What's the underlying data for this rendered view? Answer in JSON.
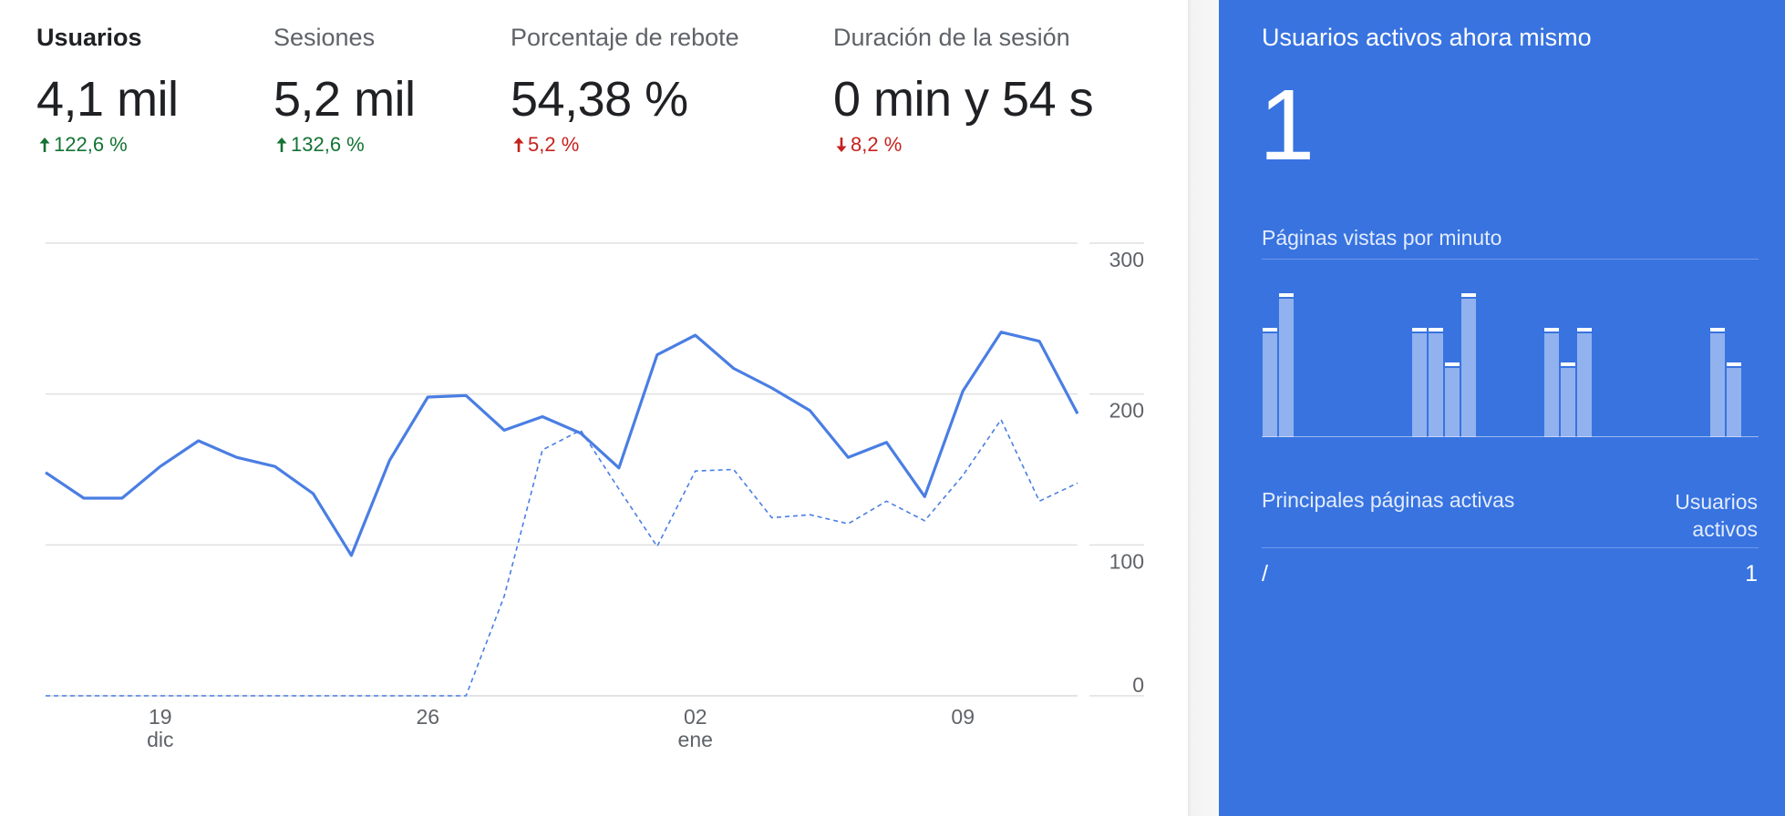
{
  "metrics": [
    {
      "label": "Usuarios",
      "value": "4,1 mil",
      "change": "122,6 %",
      "direction": "up",
      "tone": "good",
      "active": true
    },
    {
      "label": "Sesiones",
      "value": "5,2 mil",
      "change": "132,6 %",
      "direction": "up",
      "tone": "good",
      "active": false
    },
    {
      "label": "Porcentaje de rebote",
      "value": "54,38 %",
      "change": "5,2 %",
      "direction": "up",
      "tone": "bad",
      "active": false
    },
    {
      "label": "Duración de la sesión",
      "value": "0 min y 54 s",
      "change": "8,2 %",
      "direction": "down",
      "tone": "bad",
      "active": false
    }
  ],
  "colors": {
    "good": "#137333",
    "bad": "#c5221f",
    "series_line": "#4a7ee3",
    "panel": "#3873e0"
  },
  "chart_data": {
    "type": "line",
    "x": [
      "2020-12-16",
      "2020-12-17",
      "2020-12-18",
      "2020-12-19",
      "2020-12-20",
      "2020-12-21",
      "2020-12-22",
      "2020-12-23",
      "2020-12-24",
      "2020-12-25",
      "2020-12-26",
      "2020-12-27",
      "2020-12-28",
      "2020-12-29",
      "2020-12-30",
      "2020-12-31",
      "2021-01-01",
      "2021-01-02",
      "2021-01-03",
      "2021-01-04",
      "2021-01-05",
      "2021-01-06",
      "2021-01-07",
      "2021-01-08",
      "2021-01-09",
      "2021-01-10",
      "2021-01-11",
      "2021-01-12"
    ],
    "series": [
      {
        "values": [
          148,
          131,
          131,
          152,
          169,
          158,
          152,
          134,
          93,
          156,
          198,
          199,
          176,
          185,
          174,
          151,
          226,
          239,
          217,
          204,
          189,
          158,
          168,
          132,
          202,
          241,
          235,
          187
        ],
        "style": "solid"
      },
      {
        "values": [
          0,
          0,
          0,
          0,
          0,
          0,
          0,
          0,
          0,
          0,
          0,
          0,
          66,
          163,
          176,
          137,
          99,
          149,
          150,
          118,
          120,
          114,
          129,
          116,
          146,
          183,
          129,
          141
        ],
        "style": "dashed"
      }
    ],
    "x_tick_labels": [
      {
        "day": "19",
        "month": "dic",
        "x": "2020-12-19"
      },
      {
        "day": "26",
        "month": "",
        "x": "2020-12-26"
      },
      {
        "day": "02",
        "month": "ene",
        "x": "2021-01-02"
      },
      {
        "day": "09",
        "month": "",
        "x": "2021-01-09"
      }
    ],
    "y_ticks": [
      0,
      100,
      200,
      300
    ],
    "ylim": [
      0,
      300
    ],
    "grid": true
  },
  "realtime": {
    "title": "Usuarios activos ahora mismo",
    "active_users": "1",
    "pageviews_label": "Páginas vistas por minuto",
    "pageviews_per_minute": [
      3,
      4,
      0,
      0,
      0,
      0,
      0,
      0,
      0,
      3,
      3,
      2,
      4,
      0,
      0,
      0,
      0,
      3,
      2,
      3,
      0,
      0,
      0,
      0,
      0,
      0,
      0,
      3,
      2,
      0
    ],
    "pageviews_max": 4,
    "table": {
      "col_page": "Principales páginas activas",
      "col_users": "Usuarios activos",
      "rows": [
        {
          "page": "/",
          "users": "1"
        }
      ]
    }
  }
}
